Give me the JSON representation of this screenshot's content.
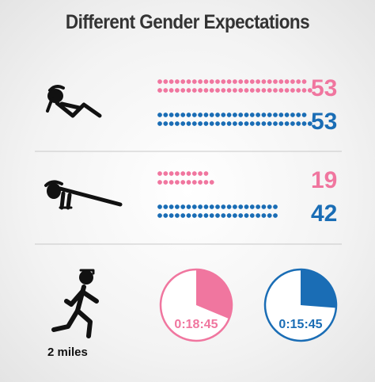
{
  "title": "Different Gender Expectations",
  "colors": {
    "female": "#f0769f",
    "male": "#1a6db5",
    "figure": "#111111",
    "divider": "#c8c8c8"
  },
  "chart_data": [
    {
      "type": "dot-count",
      "row": "sit-ups",
      "icon": "sit-up-figure-icon",
      "series": [
        {
          "color": "#f0769f",
          "value": 53,
          "label": "53"
        },
        {
          "color": "#1a6db5",
          "value": 53,
          "label": "53"
        }
      ]
    },
    {
      "type": "dot-count",
      "row": "push-ups",
      "icon": "push-up-figure-icon",
      "series": [
        {
          "color": "#f0769f",
          "value": 19,
          "label": "19"
        },
        {
          "color": "#1a6db5",
          "value": 42,
          "label": "42"
        }
      ]
    },
    {
      "type": "clock",
      "row": "run",
      "icon": "running-figure-icon",
      "caption": "2 miles",
      "max_minutes": 60,
      "series": [
        {
          "color": "#f0769f",
          "minutes": 18.75,
          "label": "0:18:45"
        },
        {
          "color": "#1a6db5",
          "minutes": 15.75,
          "label": "0:15:45"
        }
      ]
    }
  ]
}
